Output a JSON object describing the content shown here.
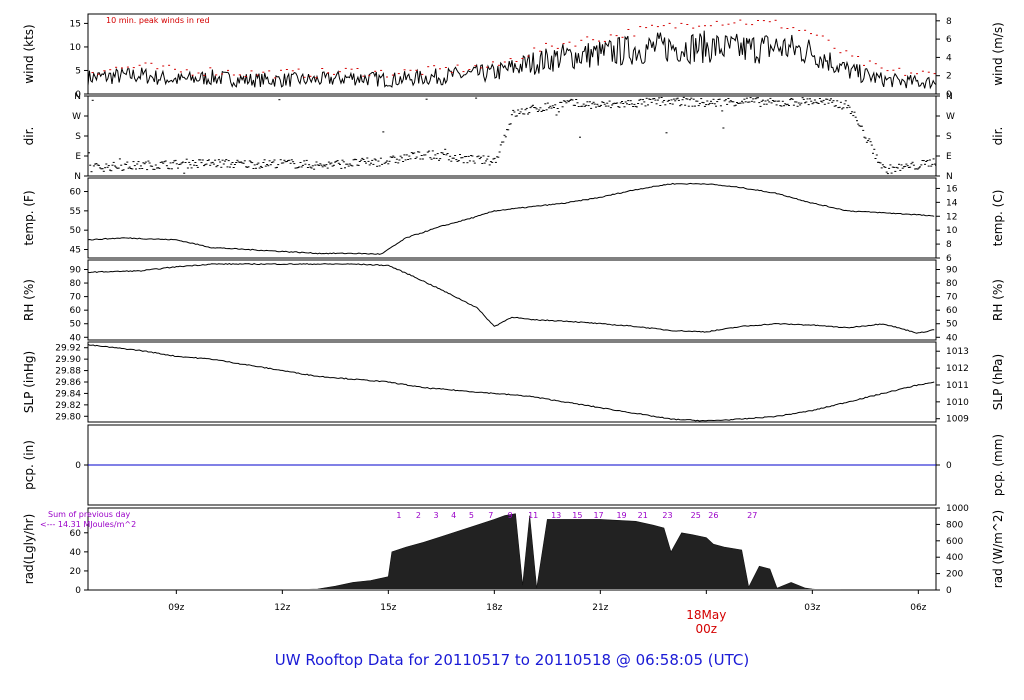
{
  "footer": {
    "title": "UW Rooftop Data for 20110517  to  20110518 @ 06:58:05  (UTC)"
  },
  "x_axis": {
    "ticks": [
      "09z",
      "12z",
      "15z",
      "18z",
      "21z",
      "00z",
      "03z",
      "06z"
    ],
    "day_label": "18May",
    "day_hour": "00z",
    "day_color": "#d40000"
  },
  "colors": {
    "line": "#000000",
    "peak": "#d40000",
    "annotation": "#9a00c8",
    "precip": "#0000cc",
    "footer": "#1a1ad6"
  },
  "chart_data": [
    {
      "type": "line",
      "id": "wind",
      "ylabel_left": "wind (kts)",
      "ylabel_right": "wind (m/s)",
      "note": "10 min. peak winds in red",
      "left_ticks": [
        0,
        5,
        10,
        15
      ],
      "right_ticks": [
        0,
        2,
        4,
        6,
        8
      ],
      "ylim": [
        0,
        17
      ],
      "x_hours": [
        6.5,
        8,
        9,
        10,
        11,
        12,
        13,
        14,
        15,
        16,
        17,
        18,
        19,
        20,
        21,
        22,
        23,
        24,
        25,
        26,
        27,
        28,
        29,
        30,
        30.5
      ],
      "values": [
        3.5,
        4,
        3,
        3.5,
        3,
        3,
        3,
        3.5,
        3,
        3.5,
        4,
        4.5,
        6.5,
        8,
        8.5,
        9.5,
        10,
        10,
        9.5,
        10,
        9,
        5,
        3,
        2.5,
        2.5
      ],
      "peak_values": [
        5,
        6,
        5,
        5,
        4.5,
        4.5,
        4.5,
        5,
        4.5,
        5,
        5.5,
        6,
        9,
        11,
        12,
        13.5,
        14.5,
        15.5,
        15.5,
        15,
        13,
        8,
        5,
        4.5,
        4
      ]
    },
    {
      "type": "scatter",
      "id": "direction",
      "ylabel_left": "dir.",
      "ylabel_right": "dir.",
      "category_ticks": [
        "N",
        "E",
        "S",
        "W",
        "N"
      ],
      "ylim": [
        0,
        360
      ],
      "x_hours": [
        6.5,
        8,
        9,
        10,
        11,
        12,
        13,
        14,
        15,
        16,
        17,
        18,
        18.5,
        19,
        20,
        21,
        22,
        23,
        24,
        25,
        26,
        27,
        28,
        29,
        30,
        30.5
      ],
      "values": [
        40,
        50,
        55,
        60,
        55,
        60,
        50,
        60,
        70,
        100,
        80,
        70,
        280,
        300,
        330,
        320,
        330,
        340,
        330,
        340,
        330,
        340,
        320,
        30,
        50,
        70
      ]
    },
    {
      "type": "line",
      "id": "temperature",
      "ylabel_left": "temp. (F)",
      "ylabel_right": "temp. (C)",
      "left_ticks": [
        45,
        50,
        55,
        60
      ],
      "right_ticks": [
        6,
        8,
        10,
        12,
        14,
        16
      ],
      "ylim": [
        42.8,
        63.5
      ],
      "x_hours": [
        6.5,
        7.5,
        9,
        10,
        11,
        12,
        13,
        14,
        14.8,
        15.5,
        16.5,
        17.5,
        18,
        19,
        20,
        21,
        22,
        23,
        24,
        25,
        26,
        27,
        28,
        29,
        30,
        30.5
      ],
      "values": [
        47.5,
        48,
        47.5,
        45.5,
        45,
        44.5,
        44,
        44,
        43.8,
        48,
        51,
        53.5,
        55,
        56,
        57,
        58.5,
        60.5,
        62,
        62,
        61,
        59.5,
        57,
        55,
        54.5,
        54,
        53.5
      ]
    },
    {
      "type": "line",
      "id": "relative_humidity",
      "ylabel_left": "RH (%)",
      "ylabel_right": "RH (%)",
      "left_ticks": [
        40,
        50,
        60,
        70,
        80,
        90
      ],
      "right_ticks": [
        40,
        50,
        60,
        70,
        80,
        90
      ],
      "ylim": [
        38,
        97
      ],
      "x_hours": [
        6.5,
        8,
        9,
        10,
        11,
        12,
        13,
        14,
        15,
        15.7,
        16.5,
        17.5,
        18,
        18.5,
        19,
        20,
        21,
        22,
        23,
        24,
        25,
        26,
        27,
        28,
        29,
        30,
        30.5
      ],
      "values": [
        88,
        89,
        92,
        94,
        94,
        94,
        94,
        94,
        93,
        85,
        75,
        62,
        48,
        55,
        53,
        52,
        50,
        48,
        45,
        44,
        48,
        50,
        49,
        47,
        50,
        43,
        46
      ]
    },
    {
      "type": "line",
      "id": "sea_level_pressure",
      "ylabel_left": "SLP (inHg)",
      "ylabel_right": "SLP (hPa)",
      "left_ticks": [
        "29.80",
        "29.82",
        "29.84",
        "29.86",
        "29.88",
        "29.90",
        "29.92"
      ],
      "right_ticks": [
        1009,
        1010,
        1011,
        1012,
        1013
      ],
      "ylim": [
        29.79,
        29.93
      ],
      "x_hours": [
        6.5,
        8,
        9,
        10,
        11,
        12,
        13,
        14,
        15,
        16,
        17,
        18,
        19,
        20,
        21,
        22,
        23,
        24,
        25,
        26,
        27,
        28,
        29,
        30,
        30.5
      ],
      "values": [
        29.925,
        29.915,
        29.905,
        29.9,
        29.89,
        29.88,
        29.87,
        29.865,
        29.86,
        29.85,
        29.845,
        29.84,
        29.835,
        29.825,
        29.815,
        29.805,
        29.795,
        29.792,
        29.795,
        29.8,
        29.81,
        29.825,
        29.84,
        29.855,
        29.86
      ]
    },
    {
      "type": "line",
      "id": "precipitation",
      "ylabel_left": "pcp. (in)",
      "ylabel_right": "pcp. (mm)",
      "left_ticks": [
        0
      ],
      "right_ticks": [
        0
      ],
      "ylim": [
        -1,
        1
      ],
      "x_hours": [
        6.5,
        30.5
      ],
      "values": [
        0,
        0
      ]
    },
    {
      "type": "area",
      "id": "radiation",
      "ylabel_left": "rad(Lgly/hr)",
      "ylabel_right": "rad (W/m^2)",
      "left_ticks": [
        0,
        20,
        40,
        60
      ],
      "right_ticks": [
        0,
        200,
        400,
        600,
        800,
        1000
      ],
      "ylim": [
        0,
        86
      ],
      "note_lines": [
        "Sum of previous day",
        "<--- 14.31 MJoules/m^2"
      ],
      "hour_markers": [
        "1",
        "2",
        "3",
        "4",
        "5",
        "7",
        "9",
        "11",
        "13",
        "15",
        "17",
        "19",
        "21",
        "23",
        "25",
        "26",
        "27"
      ],
      "hour_marker_x": [
        15.3,
        15.85,
        16.35,
        16.85,
        17.35,
        17.9,
        18.45,
        19.1,
        19.75,
        20.35,
        20.95,
        21.6,
        22.2,
        22.9,
        23.7,
        24.2,
        25.3
      ],
      "x_hours": [
        12,
        13,
        13.5,
        14,
        14.5,
        15,
        15.1,
        15.5,
        16,
        16.5,
        17,
        17.5,
        18,
        18.3,
        18.6,
        18.8,
        19,
        19.2,
        19.5,
        20,
        21,
        22,
        22.5,
        22.8,
        23,
        23.3,
        23.6,
        24,
        24.2,
        24.5,
        25,
        25.2,
        25.5,
        25.8,
        26,
        26.4,
        26.8,
        27,
        27.3
      ],
      "values": [
        0,
        1,
        4,
        8,
        10,
        14,
        40,
        45,
        50,
        56,
        62,
        68,
        74,
        78,
        80,
        5,
        78,
        2,
        74,
        74,
        74,
        72,
        68,
        65,
        40,
        60,
        58,
        55,
        48,
        45,
        42,
        3,
        25,
        22,
        2,
        8,
        2,
        1,
        0
      ]
    }
  ]
}
